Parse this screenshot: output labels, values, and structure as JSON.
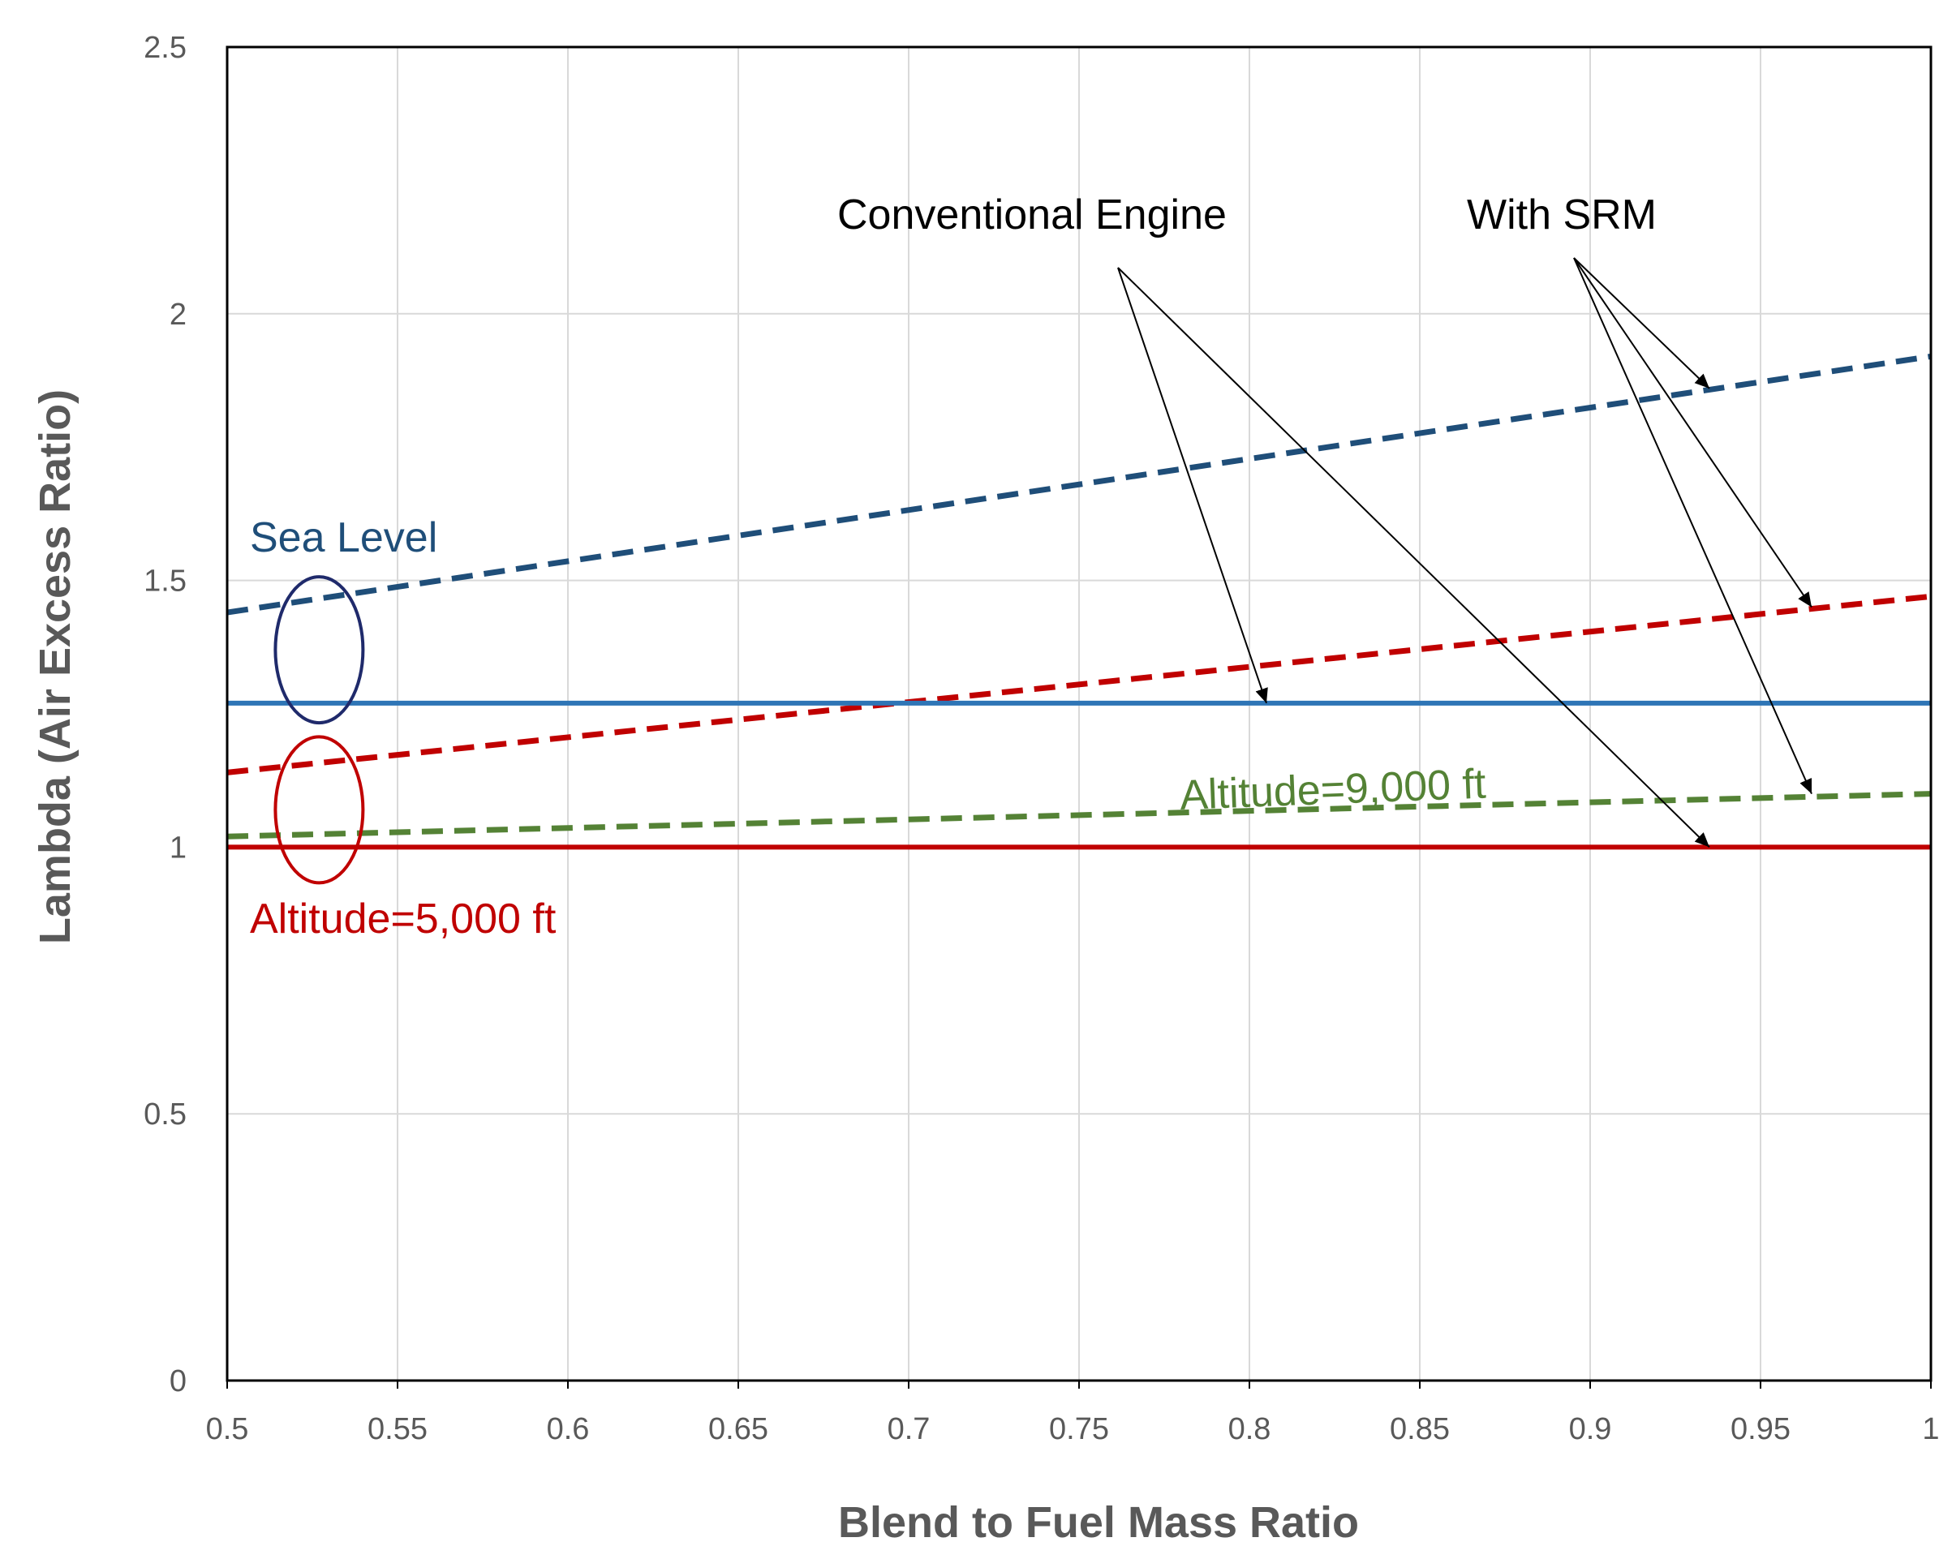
{
  "chart_data": {
    "type": "line",
    "title": "",
    "xlabel": "Blend to Fuel Mass Ratio",
    "ylabel": "Lambda (Air Excess Ratio)",
    "xlim": [
      0.5,
      1.0
    ],
    "ylim": [
      0,
      2.5
    ],
    "xticks": [
      0.5,
      0.55,
      0.6,
      0.65,
      0.7,
      0.75,
      0.8,
      0.85,
      0.9,
      0.95,
      1.0
    ],
    "xtick_labels": [
      "0.5",
      "0.55",
      "0.6",
      "0.65",
      "0.7",
      "0.75",
      "0.8",
      "0.85",
      "0.9",
      "0.95",
      "1"
    ],
    "yticks": [
      0,
      0.5,
      1.0,
      1.5,
      2.0,
      2.5
    ],
    "ytick_labels": [
      "0",
      "0.5",
      "1",
      "1.5",
      "2",
      "2.5"
    ],
    "grid": true,
    "series": [
      {
        "name": "Sea Level - With SRM",
        "style": "dashed",
        "color": "#1f4e79",
        "x": [
          0.5,
          1.0
        ],
        "values": [
          1.44,
          1.92
        ]
      },
      {
        "name": "Altitude=5,000 ft - With SRM",
        "style": "dashed",
        "color": "#c00000",
        "x": [
          0.5,
          1.0
        ],
        "values": [
          1.14,
          1.47
        ]
      },
      {
        "name": "Altitude=9,000 ft - With SRM",
        "style": "dashed",
        "color": "#548235",
        "x": [
          0.5,
          1.0
        ],
        "values": [
          1.02,
          1.1
        ]
      },
      {
        "name": "Sea Level - Conventional Engine",
        "style": "solid",
        "color": "#2e75b6",
        "x": [
          0.5,
          1.0
        ],
        "values": [
          1.27,
          1.27
        ]
      },
      {
        "name": "Altitude=5,000 ft - Conventional Engine",
        "style": "solid",
        "color": "#c00000",
        "x": [
          0.5,
          1.0
        ],
        "values": [
          1.0,
          1.0
        ]
      }
    ],
    "annotations": [
      {
        "id": "conventional",
        "text": "Conventional Engine",
        "color": "#000000"
      },
      {
        "id": "srm",
        "text": "With SRM",
        "color": "#000000"
      },
      {
        "id": "sea_level",
        "text": "Sea Level",
        "color": "#1f4e79"
      },
      {
        "id": "alt5000",
        "text": "Altitude=5,000 ft",
        "color": "#c00000"
      },
      {
        "id": "alt9000",
        "text": "Altitude=9,000 ft",
        "color": "#548235"
      }
    ],
    "arrows": [
      {
        "from": "conventional",
        "to": {
          "x": 0.805,
          "y": 1.27
        }
      },
      {
        "from": "conventional",
        "to": {
          "x": 0.935,
          "y": 1.0
        }
      },
      {
        "from": "srm",
        "to": {
          "x": 0.935,
          "y": 1.86
        }
      },
      {
        "from": "srm",
        "to": {
          "x": 0.965,
          "y": 1.45
        }
      },
      {
        "from": "srm",
        "to": {
          "x": 0.965,
          "y": 1.1
        }
      }
    ],
    "highlight_ellipses": [
      {
        "series": "Sea Level",
        "x": 0.527,
        "y": 1.37,
        "color": "#1f2a6b"
      },
      {
        "series": "Altitude=5,000 ft",
        "x": 0.527,
        "y": 1.07,
        "color": "#c00000"
      }
    ]
  }
}
